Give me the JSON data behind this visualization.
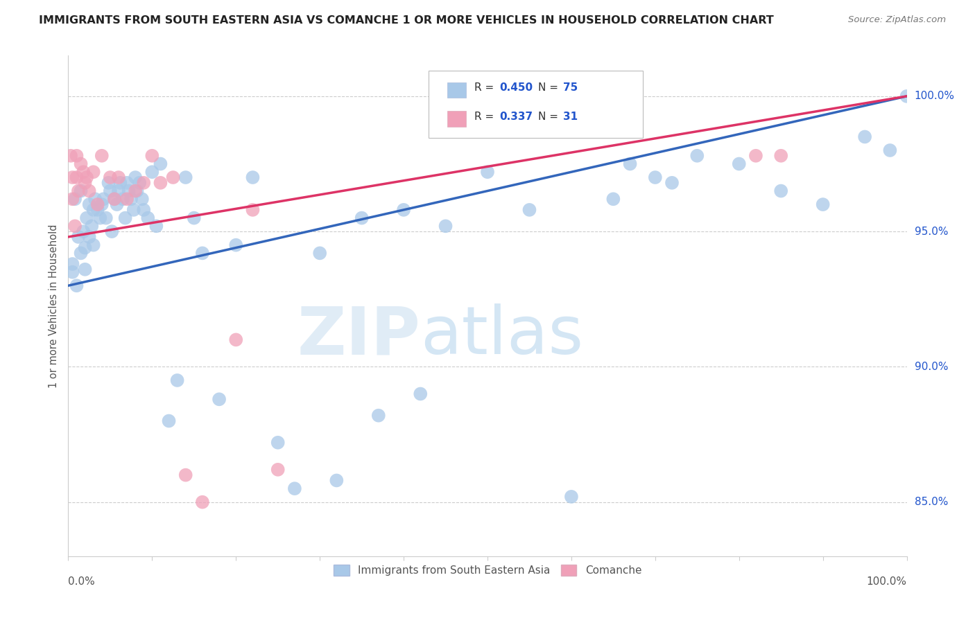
{
  "title": "IMMIGRANTS FROM SOUTH EASTERN ASIA VS COMANCHE 1 OR MORE VEHICLES IN HOUSEHOLD CORRELATION CHART",
  "source": "Source: ZipAtlas.com",
  "ylabel": "1 or more Vehicles in Household",
  "ytick_labels": [
    "85.0%",
    "90.0%",
    "95.0%",
    "100.0%"
  ],
  "ytick_values": [
    85.0,
    90.0,
    95.0,
    100.0
  ],
  "legend_label_blue": "Immigrants from South Eastern Asia",
  "legend_label_pink": "Comanche",
  "legend_r_blue": "0.450",
  "legend_n_blue": "75",
  "legend_r_pink": "0.337",
  "legend_n_pink": "31",
  "blue_color": "#a8c8e8",
  "pink_color": "#f0a0b8",
  "line_blue": "#3366bb",
  "line_pink": "#dd3366",
  "legend_text_color": "#2255cc",
  "watermark_zip": "ZIP",
  "watermark_atlas": "atlas",
  "blue_x": [
    0.5,
    0.5,
    0.8,
    1.0,
    1.2,
    1.5,
    1.5,
    1.8,
    2.0,
    2.0,
    2.2,
    2.5,
    2.5,
    2.8,
    3.0,
    3.0,
    3.2,
    3.5,
    3.8,
    4.0,
    4.2,
    4.5,
    4.8,
    5.0,
    5.2,
    5.5,
    5.8,
    6.0,
    6.2,
    6.5,
    6.8,
    7.0,
    7.2,
    7.5,
    7.8,
    8.0,
    8.2,
    8.5,
    8.8,
    9.0,
    9.5,
    10.0,
    10.5,
    11.0,
    12.0,
    13.0,
    14.0,
    15.0,
    16.0,
    18.0,
    20.0,
    22.0,
    25.0,
    27.0,
    30.0,
    32.0,
    35.0,
    37.0,
    40.0,
    42.0,
    45.0,
    50.0,
    55.0,
    60.0,
    65.0,
    67.0,
    70.0,
    72.0,
    75.0,
    80.0,
    85.0,
    90.0,
    95.0,
    98.0,
    100.0
  ],
  "blue_y": [
    93.5,
    93.8,
    96.2,
    93.0,
    94.8,
    94.2,
    96.5,
    95.0,
    93.6,
    94.4,
    95.5,
    94.8,
    96.0,
    95.2,
    95.8,
    94.5,
    96.2,
    95.8,
    95.5,
    96.0,
    96.2,
    95.5,
    96.8,
    96.5,
    95.0,
    96.2,
    96.0,
    96.5,
    96.8,
    96.2,
    95.5,
    96.8,
    96.5,
    96.2,
    95.8,
    97.0,
    96.5,
    96.8,
    96.2,
    95.8,
    95.5,
    97.2,
    95.2,
    97.5,
    88.0,
    89.5,
    97.0,
    95.5,
    94.2,
    88.8,
    94.5,
    97.0,
    87.2,
    85.5,
    94.2,
    85.8,
    95.5,
    88.2,
    95.8,
    89.0,
    95.2,
    97.2,
    95.8,
    85.2,
    96.2,
    97.5,
    97.0,
    96.8,
    97.8,
    97.5,
    96.5,
    96.0,
    98.5,
    98.0,
    100.0
  ],
  "pink_x": [
    0.3,
    0.5,
    0.5,
    0.8,
    1.0,
    1.0,
    1.2,
    1.5,
    1.8,
    2.0,
    2.2,
    2.5,
    3.0,
    3.5,
    4.0,
    5.0,
    5.5,
    6.0,
    7.0,
    8.0,
    9.0,
    10.0,
    11.0,
    12.5,
    14.0,
    16.0,
    20.0,
    22.0,
    25.0,
    82.0,
    85.0
  ],
  "pink_y": [
    97.8,
    97.0,
    96.2,
    95.2,
    97.8,
    97.0,
    96.5,
    97.5,
    97.2,
    96.8,
    97.0,
    96.5,
    97.2,
    96.0,
    97.8,
    97.0,
    96.2,
    97.0,
    96.2,
    96.5,
    96.8,
    97.8,
    96.8,
    97.0,
    86.0,
    85.0,
    91.0,
    95.8,
    86.2,
    97.8,
    97.8
  ],
  "blue_line_x": [
    0.0,
    100.0
  ],
  "blue_line_y": [
    93.0,
    100.0
  ],
  "pink_line_x": [
    0.0,
    100.0
  ],
  "pink_line_y": [
    94.8,
    100.0
  ],
  "xlim": [
    0.0,
    100.0
  ],
  "ylim": [
    83.0,
    101.5
  ],
  "background_color": "#ffffff",
  "grid_color": "#cccccc"
}
